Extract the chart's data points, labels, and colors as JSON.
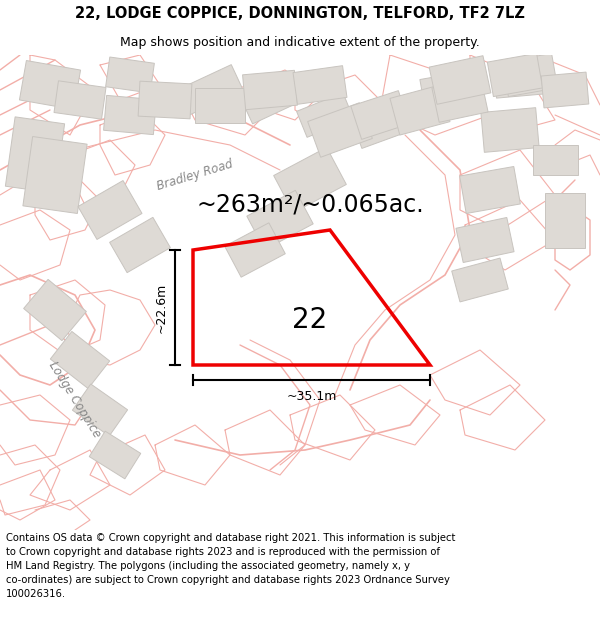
{
  "title": "22, LODGE COPPICE, DONNINGTON, TELFORD, TF2 7LZ",
  "subtitle": "Map shows position and indicative extent of the property.",
  "area_text": "~263m²/~0.065ac.",
  "label_22": "22",
  "dim_vertical": "~22.6m",
  "dim_horizontal": "~35.1m",
  "street_bradley": "Bradley Road",
  "street_coppice": "Lodge Coppice",
  "footer": "Contains OS data © Crown copyright and database right 2021. This information is subject\nto Crown copyright and database rights 2023 and is reproduced with the permission of\nHM Land Registry. The polygons (including the associated geometry, namely x, y\nco-ordinates) are subject to Crown copyright and database rights 2023 Ordnance Survey\n100026316.",
  "map_bg": "#f8f7f5",
  "road_color": "#f2aea8",
  "building_color": "#dedad5",
  "building_border": "#c8c4bf",
  "property_color": "#ee0000",
  "title_fontsize": 10.5,
  "subtitle_fontsize": 9,
  "area_fontsize": 17,
  "label_fontsize": 20,
  "footer_fontsize": 7.2,
  "street_fontsize": 8.5,
  "dim_fontsize": 9
}
